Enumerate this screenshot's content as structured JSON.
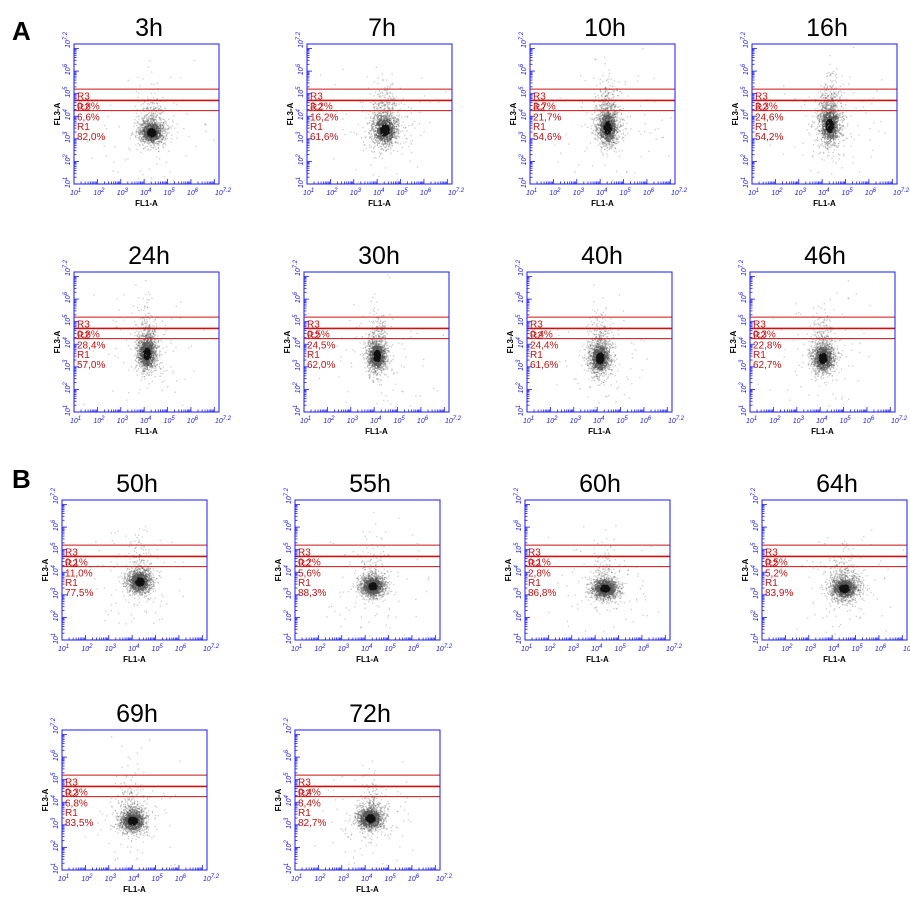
{
  "sections": {
    "a_label": "A",
    "b_label": "B"
  },
  "axis_text": {
    "x": "FL1-A",
    "y": "FL3-A"
  },
  "colors": {
    "frame": "#1a1aff",
    "gate": "#cc1111",
    "dots": "#555555"
  },
  "chart_data": [
    {
      "type": "scatter",
      "title": "3h",
      "xlabel": "FL1-A",
      "ylabel": "FL3-A",
      "xlim": [
        1,
        7.2
      ],
      "ylim": [
        1,
        7.2
      ],
      "log_scale": true,
      "gates": [
        {
          "name": "R3",
          "percent": "0,8%"
        },
        {
          "name": "R2",
          "percent": "6,6%"
        },
        {
          "name": "R1",
          "percent": "82,0%"
        }
      ],
      "cluster_center": [
        4.3,
        3.3
      ],
      "spread": [
        0.55,
        0.55
      ],
      "tail": 0.2
    },
    {
      "type": "scatter",
      "title": "7h",
      "xlabel": "FL1-A",
      "ylabel": "FL3-A",
      "xlim": [
        1,
        7.2
      ],
      "ylim": [
        1,
        7.2
      ],
      "log_scale": true,
      "gates": [
        {
          "name": "R3",
          "percent": "3,2%"
        },
        {
          "name": "R2",
          "percent": "16,2%"
        },
        {
          "name": "R1",
          "percent": "61,6%"
        }
      ],
      "cluster_center": [
        4.3,
        3.4
      ],
      "spread": [
        0.6,
        0.75
      ],
      "tail": 0.35
    },
    {
      "type": "scatter",
      "title": "10h",
      "xlabel": "FL1-A",
      "ylabel": "FL3-A",
      "xlim": [
        1,
        7.2
      ],
      "ylim": [
        1,
        7.2
      ],
      "log_scale": true,
      "gates": [
        {
          "name": "R3",
          "percent": "3,7%"
        },
        {
          "name": "R2",
          "percent": "21,7%"
        },
        {
          "name": "R1",
          "percent": "54,6%"
        }
      ],
      "cluster_center": [
        4.3,
        3.5
      ],
      "spread": [
        0.5,
        0.85
      ],
      "tail": 0.4
    },
    {
      "type": "scatter",
      "title": "16h",
      "xlabel": "FL1-A",
      "ylabel": "FL3-A",
      "xlim": [
        1,
        7.2
      ],
      "ylim": [
        1,
        7.2
      ],
      "log_scale": true,
      "gates": [
        {
          "name": "R3",
          "percent": "3,3%"
        },
        {
          "name": "R2",
          "percent": "24,6%"
        },
        {
          "name": "R1",
          "percent": "54,2%"
        }
      ],
      "cluster_center": [
        4.3,
        3.6
      ],
      "spread": [
        0.5,
        0.9
      ],
      "tail": 0.4
    },
    {
      "type": "scatter",
      "title": "24h",
      "xlabel": "FL1-A",
      "ylabel": "FL3-A",
      "xlim": [
        1,
        7.2
      ],
      "ylim": [
        1,
        7.2
      ],
      "log_scale": true,
      "gates": [
        {
          "name": "R3",
          "percent": "0,8%"
        },
        {
          "name": "R2",
          "percent": "28,4%"
        },
        {
          "name": "R1",
          "percent": "57,0%"
        }
      ],
      "cluster_center": [
        4.1,
        3.6
      ],
      "spread": [
        0.45,
        0.8
      ],
      "tail": 0.3
    },
    {
      "type": "scatter",
      "title": "30h",
      "xlabel": "FL1-A",
      "ylabel": "FL3-A",
      "xlim": [
        1,
        7.2
      ],
      "ylim": [
        1,
        7.2
      ],
      "log_scale": true,
      "gates": [
        {
          "name": "R3",
          "percent": "0,5%"
        },
        {
          "name": "R2",
          "percent": "24,5%"
        },
        {
          "name": "R1",
          "percent": "62,0%"
        }
      ],
      "cluster_center": [
        4.1,
        3.5
      ],
      "spread": [
        0.45,
        0.75
      ],
      "tail": 0.25
    },
    {
      "type": "scatter",
      "title": "40h",
      "xlabel": "FL1-A",
      "ylabel": "FL3-A",
      "xlim": [
        1,
        7.2
      ],
      "ylim": [
        1,
        7.2
      ],
      "log_scale": true,
      "gates": [
        {
          "name": "R3",
          "percent": "0,4%"
        },
        {
          "name": "R2",
          "percent": "24,4%"
        },
        {
          "name": "R1",
          "percent": "61,6%"
        }
      ],
      "cluster_center": [
        4.1,
        3.4
      ],
      "spread": [
        0.5,
        0.75
      ],
      "tail": 0.25
    },
    {
      "type": "scatter",
      "title": "46h",
      "xlabel": "FL1-A",
      "ylabel": "FL3-A",
      "xlim": [
        1,
        7.2
      ],
      "ylim": [
        1,
        7.2
      ],
      "log_scale": true,
      "gates": [
        {
          "name": "R3",
          "percent": "0,3%"
        },
        {
          "name": "R2",
          "percent": "22,8%"
        },
        {
          "name": "R1",
          "percent": "62,7%"
        }
      ],
      "cluster_center": [
        4.1,
        3.4
      ],
      "spread": [
        0.5,
        0.7
      ],
      "tail": 0.2
    },
    {
      "type": "scatter",
      "title": "50h",
      "xlabel": "FL1-A",
      "ylabel": "FL3-A",
      "xlim": [
        1,
        7.2
      ],
      "ylim": [
        1,
        7.2
      ],
      "log_scale": true,
      "gates": [
        {
          "name": "R3",
          "percent": "0,1%"
        },
        {
          "name": "R2",
          "percent": "11,0%"
        },
        {
          "name": "R1",
          "percent": "77,5%"
        }
      ],
      "cluster_center": [
        4.3,
        3.6
      ],
      "spread": [
        0.55,
        0.55
      ],
      "tail": 0.15
    },
    {
      "type": "scatter",
      "title": "55h",
      "xlabel": "FL1-A",
      "ylabel": "FL3-A",
      "xlim": [
        1,
        7.2
      ],
      "ylim": [
        1,
        7.2
      ],
      "log_scale": true,
      "gates": [
        {
          "name": "R3",
          "percent": "0,2%"
        },
        {
          "name": "R2",
          "percent": "5,6%"
        },
        {
          "name": "R1",
          "percent": "88,3%"
        }
      ],
      "cluster_center": [
        4.3,
        3.4
      ],
      "spread": [
        0.55,
        0.5
      ],
      "tail": 0.1
    },
    {
      "type": "scatter",
      "title": "60h",
      "xlabel": "FL1-A",
      "ylabel": "FL3-A",
      "xlim": [
        1,
        7.2
      ],
      "ylim": [
        1,
        7.2
      ],
      "log_scale": true,
      "gates": [
        {
          "name": "R3",
          "percent": "0,1%"
        },
        {
          "name": "R2",
          "percent": "2,8%"
        },
        {
          "name": "R1",
          "percent": "86,8%"
        }
      ],
      "cluster_center": [
        4.4,
        3.3
      ],
      "spread": [
        0.6,
        0.5
      ],
      "tail": 0.1
    },
    {
      "type": "scatter",
      "title": "64h",
      "xlabel": "FL1-A",
      "ylabel": "FL3-A",
      "xlim": [
        1,
        7.2
      ],
      "ylim": [
        1,
        7.2
      ],
      "log_scale": true,
      "gates": [
        {
          "name": "R3",
          "percent": "0,5%"
        },
        {
          "name": "R2",
          "percent": "5,2%"
        },
        {
          "name": "R1",
          "percent": "83,9%"
        }
      ],
      "cluster_center": [
        4.5,
        3.3
      ],
      "spread": [
        0.65,
        0.55
      ],
      "tail": 0.15
    },
    {
      "type": "scatter",
      "title": "69h",
      "xlabel": "FL1-A",
      "ylabel": "FL3-A",
      "xlim": [
        1,
        7.2
      ],
      "ylim": [
        1,
        7.2
      ],
      "log_scale": true,
      "gates": [
        {
          "name": "R3",
          "percent": "0,3%"
        },
        {
          "name": "R2",
          "percent": "6,8%"
        },
        {
          "name": "R1",
          "percent": "83,5%"
        }
      ],
      "cluster_center": [
        4.0,
        3.2
      ],
      "spread": [
        0.6,
        0.55
      ],
      "tail": 0.15
    },
    {
      "type": "scatter",
      "title": "72h",
      "xlabel": "FL1-A",
      "ylabel": "FL3-A",
      "xlim": [
        1,
        7.2
      ],
      "ylim": [
        1,
        7.2
      ],
      "log_scale": true,
      "gates": [
        {
          "name": "R3",
          "percent": "0,4%"
        },
        {
          "name": "R2",
          "percent": "8,4%"
        },
        {
          "name": "R1",
          "percent": "82,7%"
        }
      ],
      "cluster_center": [
        4.2,
        3.3
      ],
      "spread": [
        0.6,
        0.55
      ],
      "tail": 0.15
    }
  ]
}
